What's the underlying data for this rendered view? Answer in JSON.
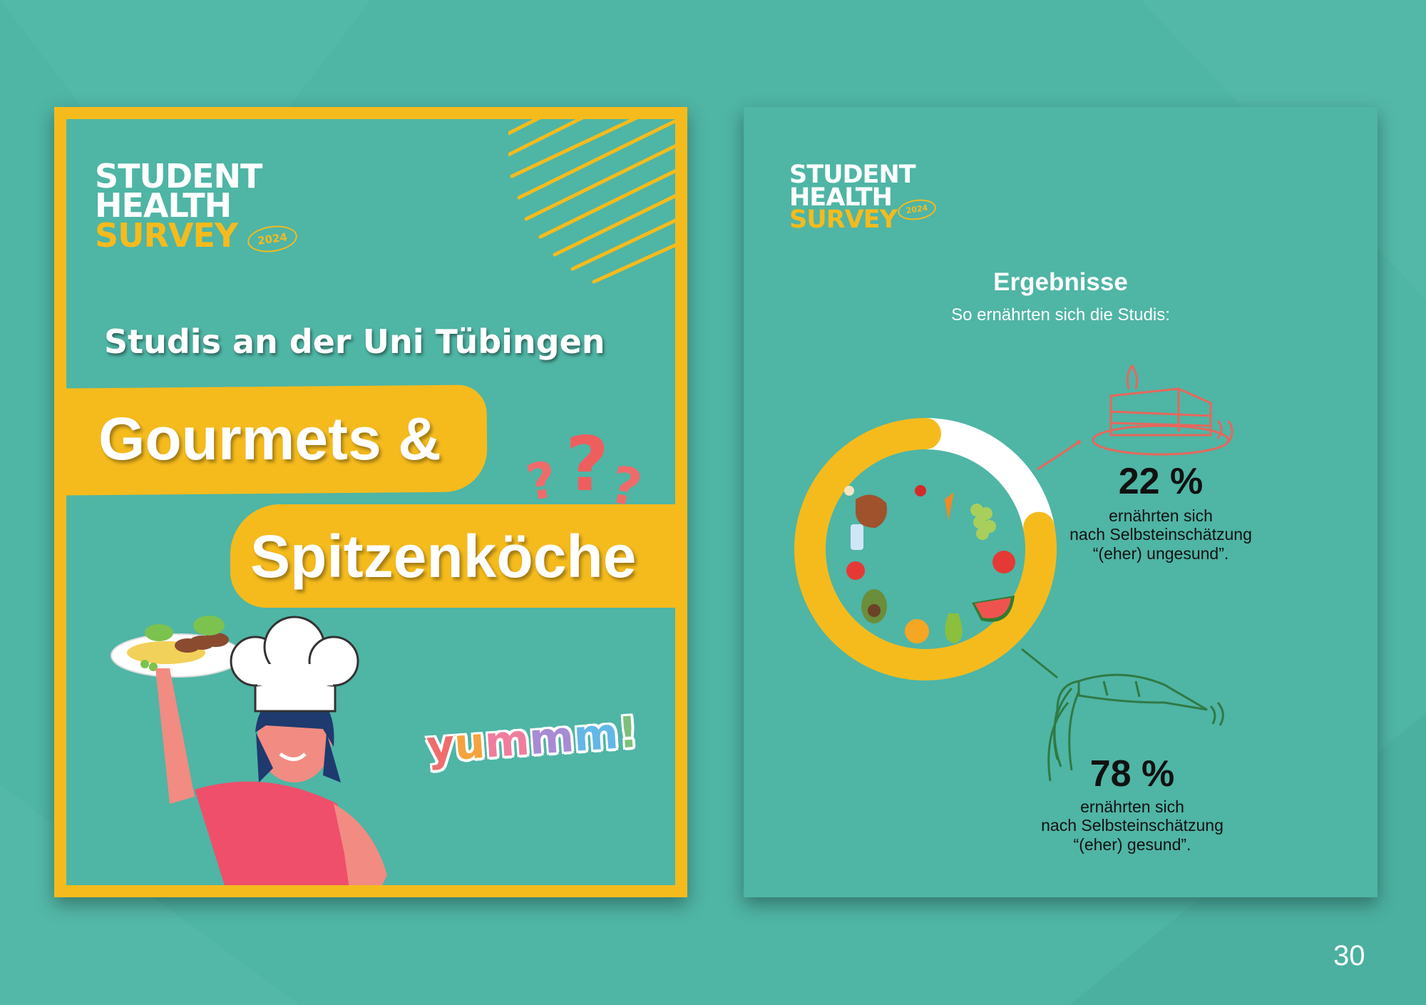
{
  "logo": {
    "line1": "STUDENT",
    "line2": "HEALTH",
    "line3": "SURVEY",
    "year": "2024"
  },
  "left_panel": {
    "subtitle": "Studis an der Uni Tübingen",
    "title_line1": "Gourmets &",
    "title_line2": "Spitzenköche",
    "question_marks": "???",
    "yummm_letters": [
      "y",
      "u",
      "m",
      "m",
      "m",
      "!"
    ]
  },
  "right_panel": {
    "heading": "Ergebnisse",
    "subheading": "So ernährten sich die Studis:"
  },
  "chart_data": {
    "type": "pie",
    "title": "Ergebnisse",
    "subtitle": "So ernährten sich die Studis:",
    "slices": [
      {
        "label": "ernährten sich nach Selbsteinschätzung “(eher) ungesund”.",
        "value": 22,
        "display": "22 %",
        "color": "#ffffff",
        "line1": "ernährten sich",
        "line2": "nach Selbsteinschätzung",
        "line3": "“(eher) ungesund”."
      },
      {
        "label": "ernährten sich nach Selbsteinschätzung “(eher) gesund”.",
        "value": 78,
        "display": "78 %",
        "color": "#f5bb1d",
        "line1": "ernährten sich",
        "line2": "nach Selbsteinschätzung",
        "line3": "“(eher) gesund”."
      }
    ]
  },
  "colors": {
    "background": "#4fb5a5",
    "accent": "#f5bb1d",
    "text_dark": "#111111",
    "cake_line": "#e7675c",
    "carrot_line": "#2f7a45"
  },
  "page_number": "30"
}
